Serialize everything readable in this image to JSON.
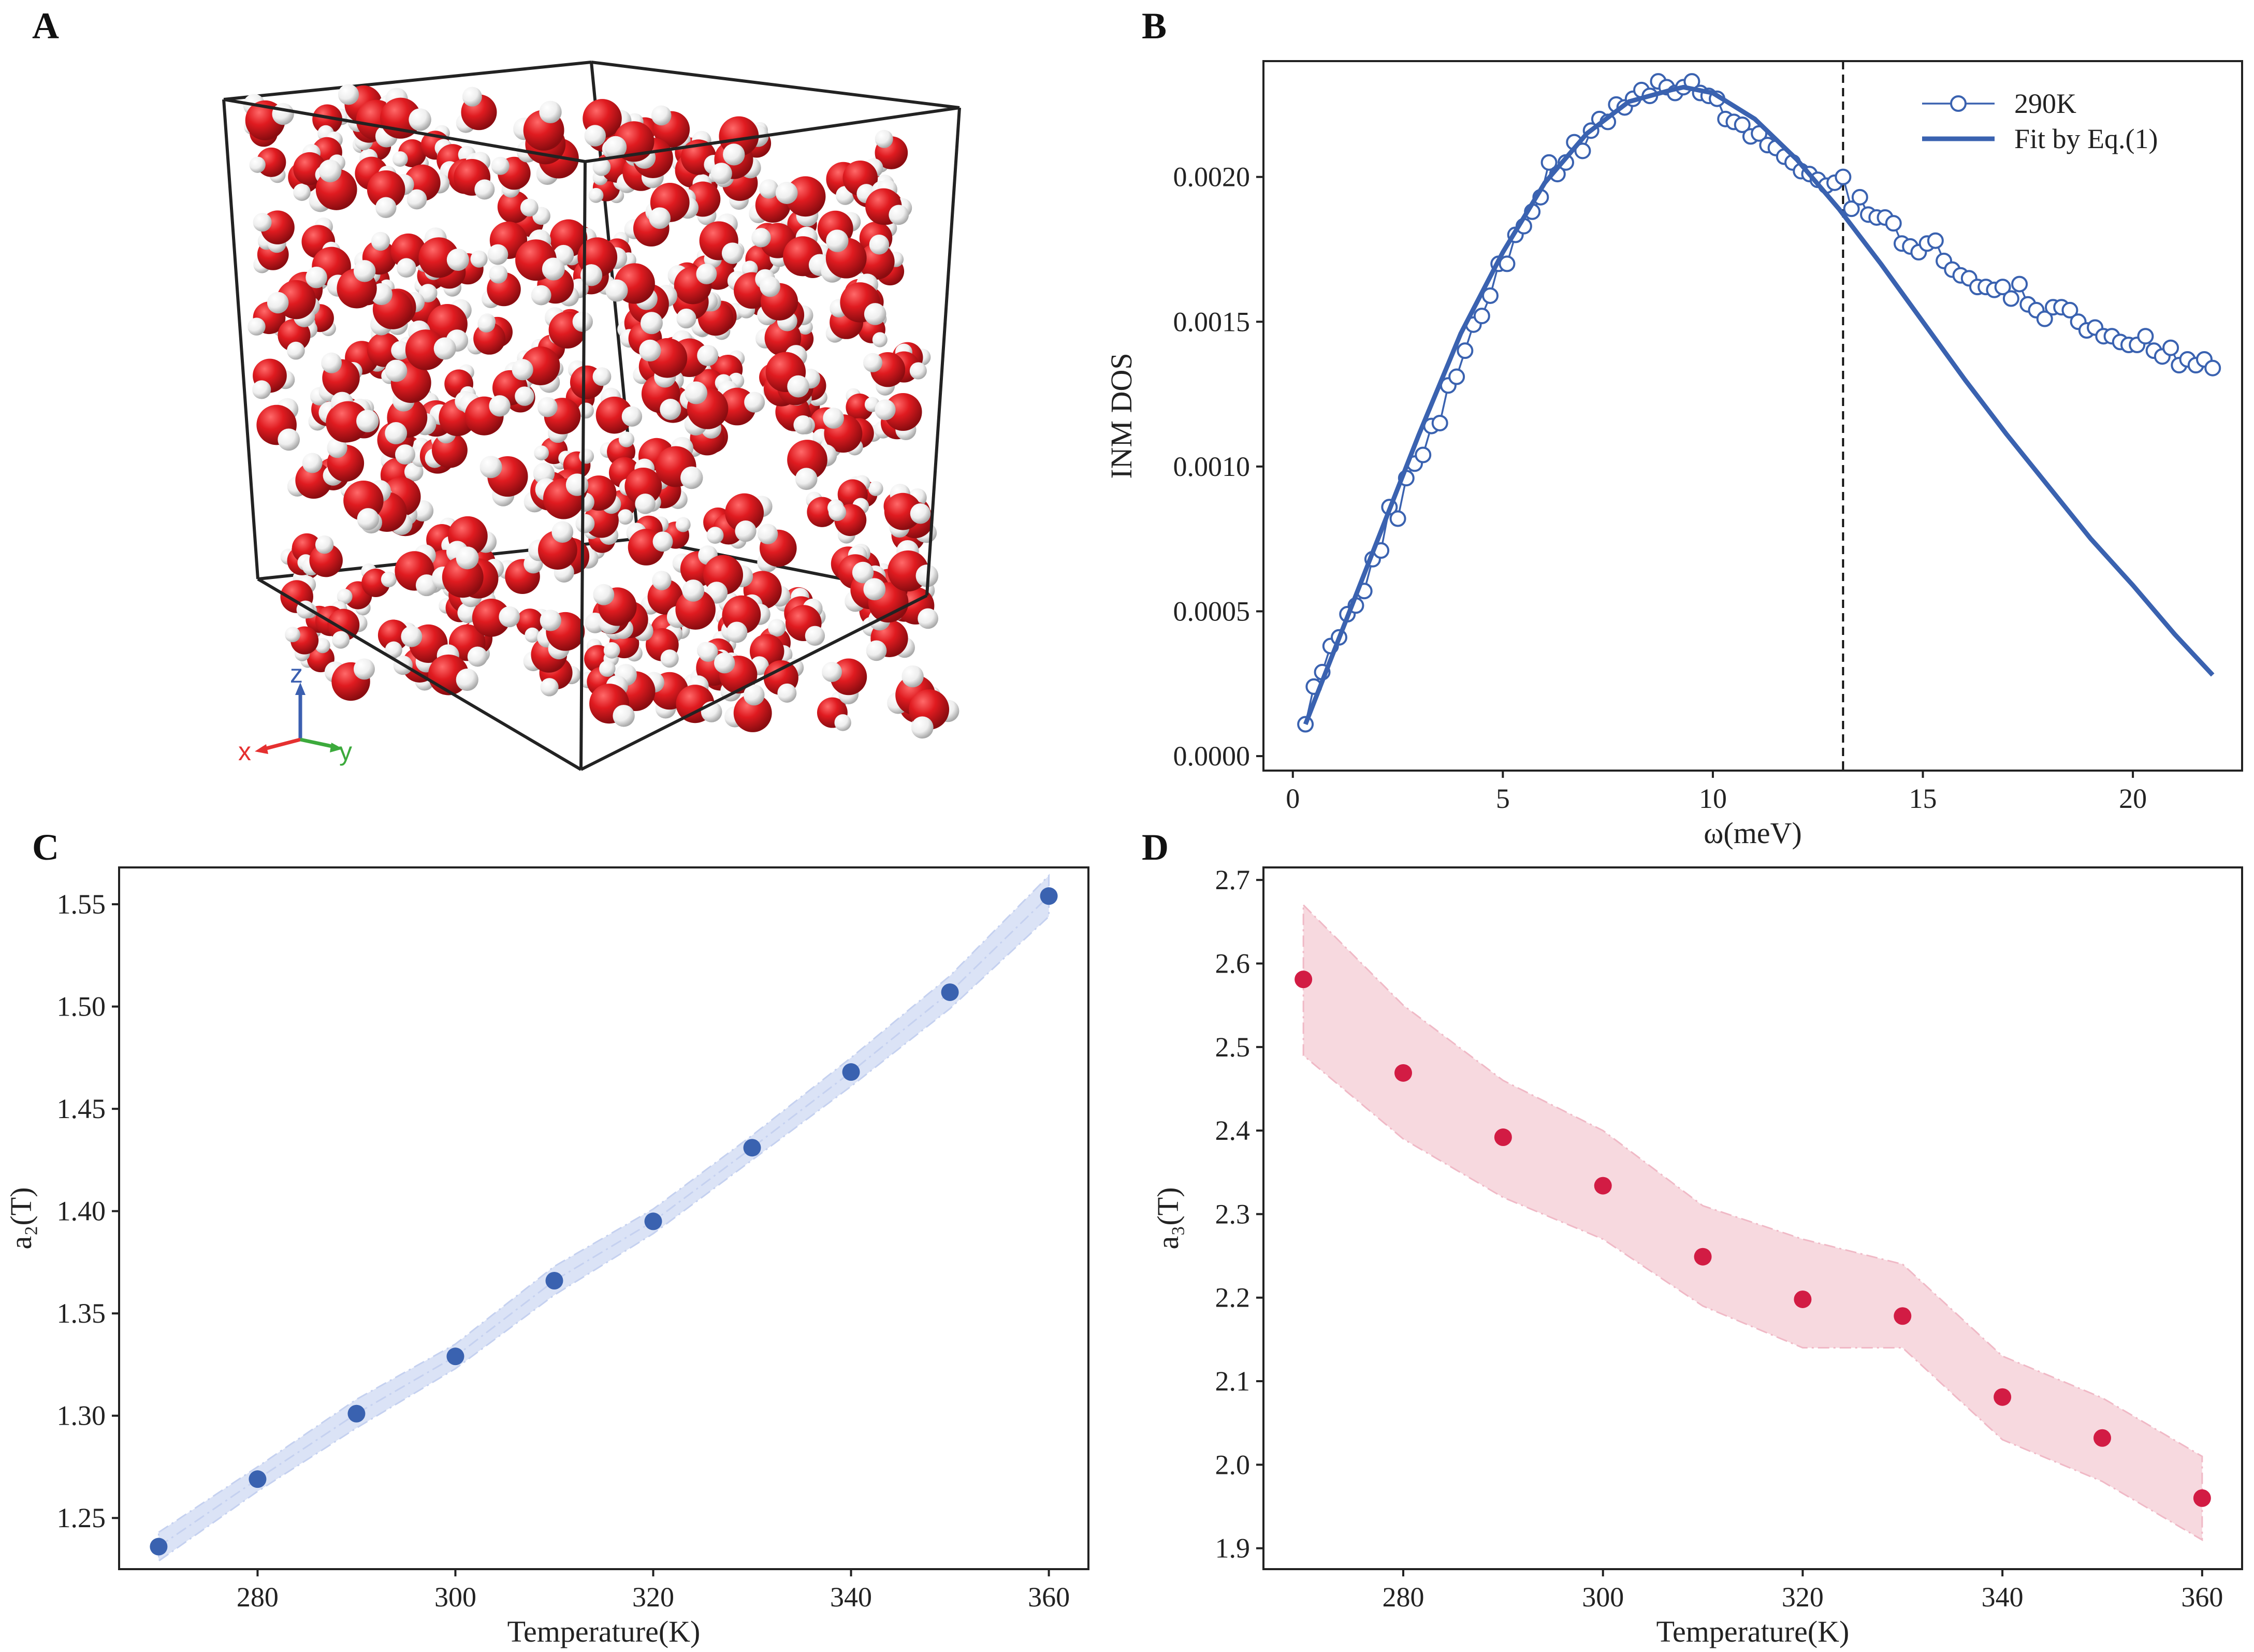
{
  "panel_labels": {
    "a": "A",
    "b": "B",
    "c": "C",
    "d": "D"
  },
  "panel_a": {
    "type": "molecular-render",
    "axes": {
      "x": "x",
      "y": "y",
      "z": "z"
    },
    "colors": {
      "oxygen": "#dd1a1f",
      "hydrogen": "#f2f2f2",
      "x_axis": "#e53030",
      "y_axis": "#3caa3c",
      "z_axis": "#3b5fb0"
    }
  },
  "colors": {
    "blue": "#3a62b0",
    "blue_band": "#dbe3f6",
    "red": "#d21c44",
    "red_band": "#f7d9df",
    "black": "#111111"
  },
  "chart_data": [
    {
      "id": "B",
      "type": "line",
      "xlabel": "ω(meV)",
      "ylabel": "INM DOS",
      "xlim": [
        -0.7,
        22.6
      ],
      "ylim": [
        -5e-05,
        0.0024
      ],
      "xticks": [
        0,
        5,
        10,
        15,
        20
      ],
      "yticks": [
        0.0,
        0.0005,
        0.001,
        0.0015,
        0.002
      ],
      "ytick_labels": [
        "0.0000",
        "0.0005",
        "0.0010",
        "0.0015",
        "0.0020"
      ],
      "vline_x": 13.1,
      "legend_position": "top-right",
      "legend": [
        "290K",
        "Fit by Eq.(1)"
      ],
      "series": [
        {
          "name": "290K",
          "style": "line-open-circles",
          "x": [
            0.3,
            0.5,
            0.7,
            0.9,
            1.1,
            1.3,
            1.5,
            1.7,
            1.9,
            2.1,
            2.3,
            2.5,
            2.7,
            2.9,
            3.1,
            3.3,
            3.5,
            3.7,
            3.9,
            4.1,
            4.3,
            4.5,
            4.7,
            4.9,
            5.1,
            5.3,
            5.5,
            5.7,
            5.9,
            6.1,
            6.3,
            6.5,
            6.7,
            6.9,
            7.1,
            7.3,
            7.5,
            7.7,
            7.9,
            8.1,
            8.3,
            8.5,
            8.7,
            8.9,
            9.1,
            9.3,
            9.5,
            9.7,
            9.9,
            10.1,
            10.3,
            10.5,
            10.7,
            10.9,
            11.1,
            11.3,
            11.5,
            11.7,
            11.9,
            12.1,
            12.3,
            12.5,
            12.7,
            12.9,
            13.1,
            13.3,
            13.5,
            13.7,
            13.9,
            14.1,
            14.3,
            14.5,
            14.7,
            14.9,
            15.1,
            15.3,
            15.5,
            15.7,
            15.9,
            16.1,
            16.3,
            16.5,
            16.7,
            16.9,
            17.1,
            17.3,
            17.5,
            17.7,
            17.9,
            18.1,
            18.3,
            18.5,
            18.7,
            18.9,
            19.1,
            19.3,
            19.5,
            19.7,
            19.9,
            20.1,
            20.3,
            20.5,
            20.7,
            20.9,
            21.1,
            21.3,
            21.5,
            21.7,
            21.9
          ],
          "y": [
            0.00011,
            0.00024,
            0.00029,
            0.00038,
            0.00041,
            0.00049,
            0.00052,
            0.00057,
            0.00068,
            0.00071,
            0.00086,
            0.00082,
            0.00096,
            0.00101,
            0.00104,
            0.00114,
            0.00115,
            0.00128,
            0.00131,
            0.0014,
            0.00149,
            0.00152,
            0.00159,
            0.0017,
            0.0017,
            0.0018,
            0.00183,
            0.00188,
            0.00193,
            0.00205,
            0.00201,
            0.00205,
            0.00212,
            0.00209,
            0.00216,
            0.0022,
            0.00219,
            0.00225,
            0.00224,
            0.00227,
            0.0023,
            0.00228,
            0.00233,
            0.00231,
            0.00229,
            0.00231,
            0.00233,
            0.00229,
            0.00228,
            0.00227,
            0.0022,
            0.00219,
            0.00218,
            0.00214,
            0.00215,
            0.00211,
            0.0021,
            0.00207,
            0.00205,
            0.00202,
            0.00201,
            0.00199,
            0.00197,
            0.00198,
            0.002,
            0.00189,
            0.00193,
            0.00187,
            0.00186,
            0.00186,
            0.00184,
            0.00177,
            0.00176,
            0.00174,
            0.00177,
            0.00178,
            0.00171,
            0.00168,
            0.00166,
            0.00165,
            0.00162,
            0.00162,
            0.00161,
            0.00162,
            0.00158,
            0.00163,
            0.00156,
            0.00154,
            0.00151,
            0.00155,
            0.00155,
            0.00154,
            0.0015,
            0.00147,
            0.00148,
            0.00145,
            0.00145,
            0.00143,
            0.00142,
            0.00142,
            0.00145,
            0.0014,
            0.00138,
            0.00141,
            0.00135,
            0.00137,
            0.00135,
            0.00137,
            0.00134
          ]
        },
        {
          "name": "Fit by Eq.(1)",
          "style": "solid-line",
          "x": [
            0.3,
            1,
            2,
            3,
            4,
            5,
            6,
            7,
            8,
            9,
            9.3,
            10,
            11,
            12,
            13,
            14,
            15,
            16,
            17,
            18,
            19,
            20,
            21,
            21.9
          ],
          "y": [
            0.00011,
            0.00037,
            0.00074,
            0.00111,
            0.00146,
            0.00174,
            0.00198,
            0.00215,
            0.00226,
            0.0023,
            0.00231,
            0.00229,
            0.0022,
            0.00206,
            0.00189,
            0.0017,
            0.0015,
            0.0013,
            0.00111,
            0.00093,
            0.00075,
            0.00059,
            0.00042,
            0.00028
          ]
        }
      ]
    },
    {
      "id": "C",
      "type": "scatter",
      "xlabel": "Temperature(K)",
      "ylabel": "a₂(T)",
      "xlim": [
        266,
        364
      ],
      "ylim": [
        1.225,
        1.568
      ],
      "xticks": [
        280,
        300,
        320,
        340,
        360
      ],
      "yticks": [
        1.25,
        1.3,
        1.35,
        1.4,
        1.45,
        1.5,
        1.55
      ],
      "ytick_labels": [
        "1.25",
        "1.30",
        "1.35",
        "1.40",
        "1.45",
        "1.50",
        "1.55"
      ],
      "x": [
        270,
        280,
        290,
        300,
        310,
        320,
        330,
        340,
        350,
        360
      ],
      "y": [
        1.236,
        1.269,
        1.301,
        1.329,
        1.366,
        1.395,
        1.431,
        1.468,
        1.507,
        1.554
      ],
      "band_half_width": [
        0.007,
        0.006,
        0.007,
        0.006,
        0.007,
        0.006,
        0.006,
        0.007,
        0.008,
        0.01
      ]
    },
    {
      "id": "D",
      "type": "scatter",
      "xlabel": "Temperature(K)",
      "ylabel": "a₃(T)",
      "xlim": [
        266,
        364
      ],
      "ylim": [
        1.875,
        2.715
      ],
      "xticks": [
        280,
        300,
        320,
        340,
        360
      ],
      "yticks": [
        1.9,
        2.0,
        2.1,
        2.2,
        2.3,
        2.4,
        2.5,
        2.6,
        2.7
      ],
      "ytick_labels": [
        "1.9",
        "2.0",
        "2.1",
        "2.2",
        "2.3",
        "2.4",
        "2.5",
        "2.6",
        "2.7"
      ],
      "x": [
        270,
        280,
        290,
        300,
        310,
        320,
        330,
        340,
        350,
        360
      ],
      "y": [
        2.581,
        2.469,
        2.392,
        2.334,
        2.249,
        2.198,
        2.178,
        2.081,
        2.032,
        1.96
      ],
      "band_upper": [
        2.67,
        2.55,
        2.46,
        2.4,
        2.31,
        2.27,
        2.24,
        2.13,
        2.08,
        2.01
      ],
      "band_lower": [
        2.49,
        2.39,
        2.32,
        2.27,
        2.19,
        2.14,
        2.14,
        2.03,
        1.98,
        1.91
      ]
    }
  ]
}
